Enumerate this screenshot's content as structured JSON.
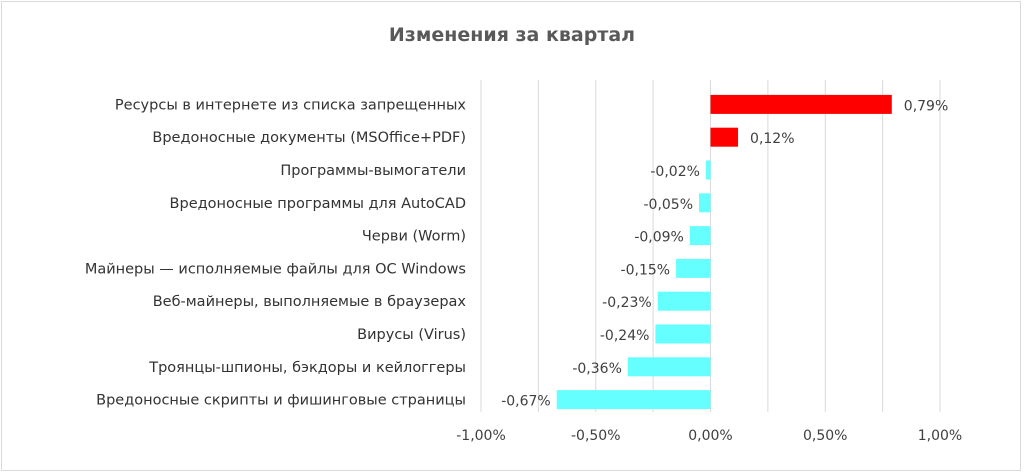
{
  "chart_data": {
    "type": "bar",
    "orientation": "horizontal",
    "title": "Изменения за квартал",
    "categories": [
      "Ресурсы в интернете из списка запрещенных",
      "Вредоносные документы (MSOffice+PDF)",
      "Программы-вымогатели",
      "Вредоносные программы для AutoCAD",
      "Черви (Worm)",
      "Майнеры — исполняемые файлы для ОС Windows",
      "Веб-майнеры, выполняемые в браузерах",
      "Вирусы (Virus)",
      "Троянцы-шпионы, бэкдоры и кейлоггеры",
      "Вредоносные скрипты и фишинговые страницы"
    ],
    "values": [
      0.79,
      0.12,
      -0.02,
      -0.05,
      -0.09,
      -0.15,
      -0.23,
      -0.24,
      -0.36,
      -0.67
    ],
    "value_labels": [
      "0,79%",
      "0,12%",
      "-0,02%",
      "-0,05%",
      "-0,09%",
      "-0,15%",
      "-0,23%",
      "-0,24%",
      "-0,36%",
      "-0,67%"
    ],
    "xlim": [
      -1.0,
      1.0
    ],
    "xticks": [
      -1.0,
      -0.5,
      0.0,
      0.5,
      1.0
    ],
    "xtick_labels": [
      "-1,00%",
      "-0,50%",
      "0,00%",
      "0,50%",
      "1,00%"
    ],
    "xlabel": "",
    "ylabel": "",
    "grid": "vertical",
    "colors": {
      "positive": "#ff0000",
      "negative": "#66ffff",
      "grid": "#d9d9d9"
    }
  }
}
